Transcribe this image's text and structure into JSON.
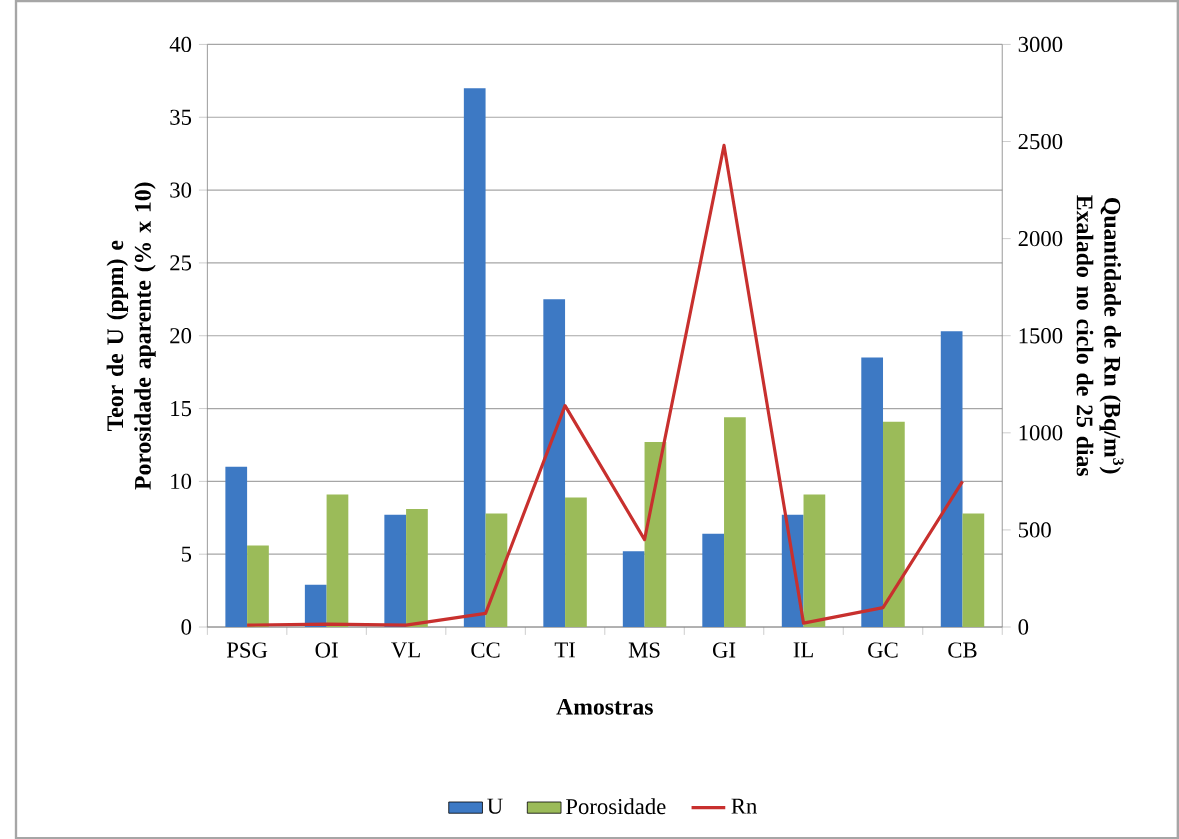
{
  "chart_data": {
    "type": "bar",
    "categories": [
      "PSG",
      "OI",
      "VL",
      "CC",
      "TI",
      "MS",
      "GI",
      "IL",
      "GC",
      "CB"
    ],
    "series": [
      {
        "name": "U",
        "color": "#3d79c4",
        "values": [
          11.0,
          2.9,
          7.7,
          37.0,
          22.5,
          5.2,
          6.4,
          7.7,
          18.5,
          20.3
        ]
      },
      {
        "name": "Porosidade",
        "color": "#9bbb59",
        "values": [
          5.6,
          9.1,
          8.1,
          7.8,
          8.9,
          12.7,
          14.4,
          9.1,
          14.1,
          7.8
        ]
      },
      {
        "name": "Rn",
        "type": "line",
        "axis": "y2",
        "color": "#c8302e",
        "values": [
          10,
          15,
          10,
          70,
          1140,
          450,
          2480,
          20,
          100,
          750
        ]
      }
    ],
    "xlabel": "Amostras",
    "ylabel": "Teor de U (ppm) e Porosidade aparente (% x 10)",
    "y2label": "Quantidade de Rn (Bq/m$^{3}$) Exalado no ciclo de 25 dias",
    "ylim": [
      0,
      40
    ],
    "yticks": [
      0,
      5,
      10,
      15,
      20,
      25,
      30,
      35,
      40
    ],
    "y2lim": [
      0,
      3000
    ],
    "y2ticks": [
      0,
      500,
      1000,
      1500,
      2000,
      2500,
      3000
    ],
    "grid": "y",
    "legend": "bottom"
  }
}
